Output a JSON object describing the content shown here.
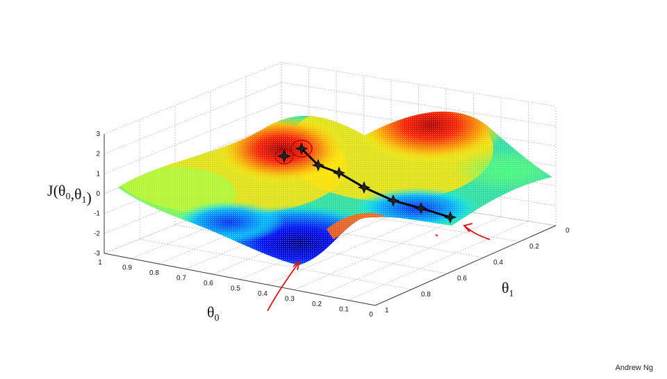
{
  "chart_data": {
    "type": "surface",
    "zlabel": "J(θ0,θ1)",
    "xlabel": "θ0",
    "ylabel": "θ1",
    "z_ticks": [
      "3",
      "2",
      "1",
      "0",
      "-1",
      "-2",
      "-3"
    ],
    "theta0_ticks": [
      "1",
      "0.9",
      "0.8",
      "0.7",
      "0.6",
      "0.5",
      "0.4",
      "0.3",
      "0.2",
      "0.1",
      "0"
    ],
    "theta1_ticks": [
      "0",
      "0.2",
      "0.4",
      "0.6",
      "0.8",
      "1"
    ],
    "zlim": [
      -3,
      3
    ],
    "grid": true,
    "colormap": "jet",
    "descent_path": {
      "start": {
        "theta0": 0.62,
        "theta1": 0.05,
        "z": 2.4
      },
      "end": {
        "theta0": 0.1,
        "theta1": 0.25,
        "z": -1.3
      },
      "steps": 8,
      "color": "#000000"
    },
    "circled_points": 2,
    "annotation_color": "#e01010"
  },
  "footer": {
    "credit": "Andrew Ng"
  }
}
